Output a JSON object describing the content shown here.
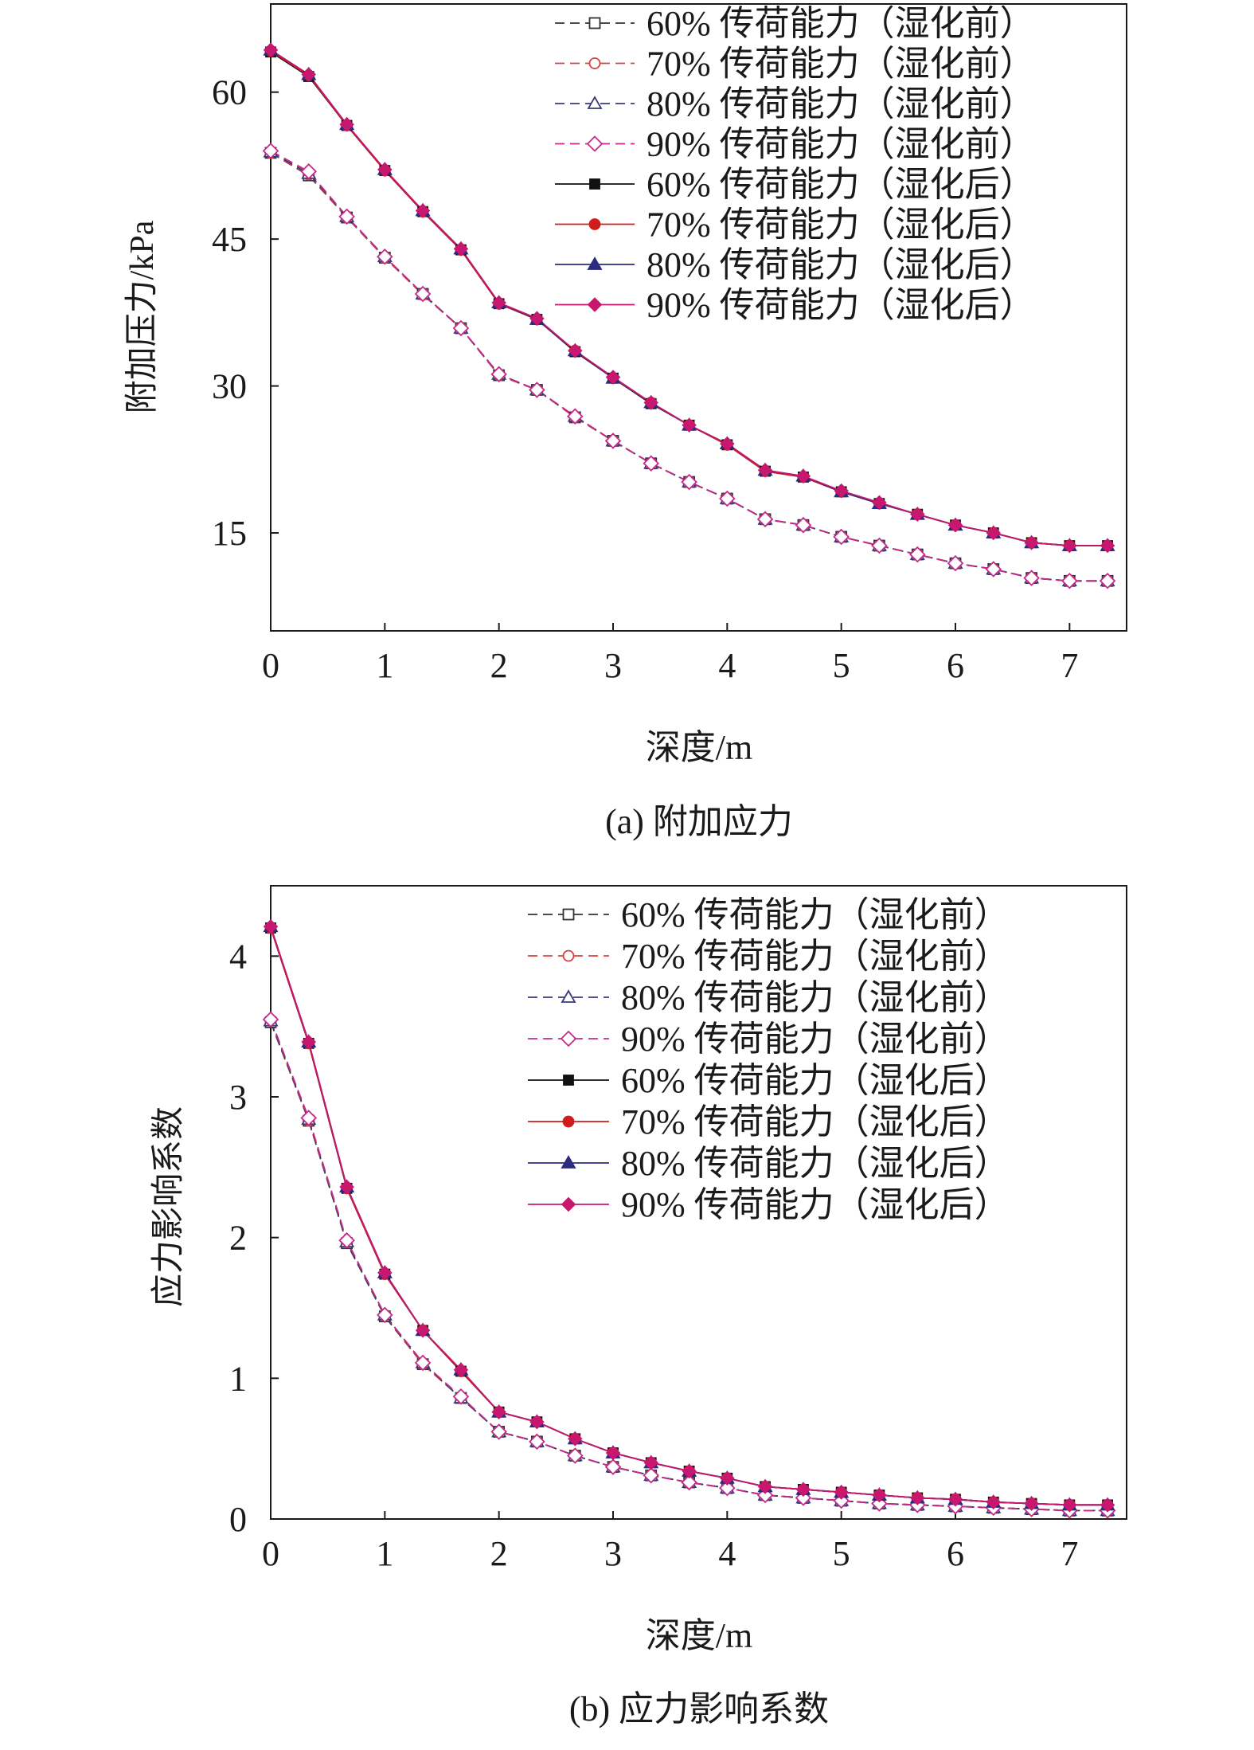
{
  "chart_data": [
    {
      "type": "line",
      "caption": "(a) 附加应力",
      "xlabel": "深度/m",
      "ylabel": "附加压力/kPa",
      "xlim": [
        0,
        7.5
      ],
      "ylim": [
        5,
        69
      ],
      "xticks": [
        0,
        1,
        2,
        3,
        4,
        5,
        6,
        7
      ],
      "yticks": [
        15,
        30,
        45,
        60
      ],
      "grid": false,
      "legend_position": "top-right",
      "x": [
        0,
        0.333,
        0.667,
        1.0,
        1.333,
        1.667,
        2.0,
        2.333,
        2.667,
        3.0,
        3.333,
        3.667,
        4.0,
        4.333,
        4.667,
        5.0,
        5.333,
        5.667,
        6.0,
        6.333,
        6.667,
        7.0,
        7.333
      ],
      "series": [
        {
          "name": "60% 传荷能力（湿化前）",
          "color": "#333333",
          "dashed": true,
          "marker": "square-open",
          "values": [
            53.8,
            51.5,
            47.2,
            43.1,
            39.4,
            35.9,
            31.1,
            29.6,
            26.8,
            24.4,
            22.1,
            20.2,
            18.5,
            16.4,
            15.8,
            14.6,
            13.7,
            12.8,
            11.9,
            11.3,
            10.4,
            10.1,
            10.1
          ]
        },
        {
          "name": "70% 传荷能力（湿化前）",
          "color": "#d94040",
          "dashed": true,
          "marker": "circle-open",
          "values": [
            53.8,
            51.6,
            47.2,
            43.1,
            39.3,
            35.9,
            31.1,
            29.6,
            26.8,
            24.4,
            22.1,
            20.2,
            18.5,
            16.4,
            15.8,
            14.6,
            13.7,
            12.8,
            11.9,
            11.3,
            10.4,
            10.1,
            10.1
          ]
        },
        {
          "name": "80% 传荷能力（湿化前）",
          "color": "#3a3a7a",
          "dashed": true,
          "marker": "triangle-open",
          "values": [
            53.9,
            51.7,
            47.3,
            43.2,
            39.4,
            35.9,
            31.2,
            29.6,
            26.9,
            24.4,
            22.1,
            20.2,
            18.5,
            16.4,
            15.8,
            14.6,
            13.7,
            12.8,
            11.9,
            11.3,
            10.4,
            10.1,
            10.1
          ]
        },
        {
          "name": "90% 传荷能力（湿化前）",
          "color": "#c72a8a",
          "dashed": true,
          "marker": "diamond-open",
          "values": [
            54.0,
            51.9,
            47.3,
            43.2,
            39.4,
            35.9,
            31.2,
            29.6,
            26.9,
            24.4,
            22.1,
            20.2,
            18.5,
            16.4,
            15.8,
            14.6,
            13.7,
            12.8,
            11.9,
            11.3,
            10.4,
            10.1,
            10.1
          ]
        },
        {
          "name": "60% 传荷能力（湿化后）",
          "color": "#111111",
          "dashed": false,
          "marker": "square",
          "values": [
            64.1,
            61.6,
            56.6,
            52.0,
            47.8,
            43.9,
            38.4,
            36.8,
            33.5,
            30.8,
            28.2,
            26.0,
            24.0,
            21.3,
            20.7,
            19.2,
            18.0,
            16.9,
            15.8,
            15.0,
            14.0,
            13.7,
            13.7
          ]
        },
        {
          "name": "70% 传荷能力（湿化后）",
          "color": "#d01c1c",
          "dashed": false,
          "marker": "circle",
          "values": [
            64.2,
            61.7,
            56.6,
            52.0,
            47.8,
            43.9,
            38.4,
            36.8,
            33.6,
            30.8,
            28.3,
            26.0,
            24.0,
            21.3,
            20.7,
            19.2,
            18.0,
            16.9,
            15.8,
            15.0,
            14.0,
            13.7,
            13.7
          ]
        },
        {
          "name": "80% 传荷能力（湿化后）",
          "color": "#2b2b80",
          "dashed": false,
          "marker": "triangle",
          "values": [
            64.3,
            61.8,
            56.7,
            52.1,
            47.9,
            44.0,
            38.5,
            36.8,
            33.6,
            30.8,
            28.3,
            26.0,
            24.1,
            21.4,
            20.8,
            19.2,
            18.0,
            16.9,
            15.8,
            15.0,
            14.0,
            13.7,
            13.7
          ]
        },
        {
          "name": "90% 传荷能力（湿化后）",
          "color": "#c8176e",
          "dashed": false,
          "marker": "diamond",
          "values": [
            64.3,
            61.8,
            56.7,
            52.1,
            47.9,
            44.0,
            38.5,
            36.9,
            33.6,
            30.9,
            28.3,
            26.0,
            24.1,
            21.4,
            20.8,
            19.3,
            18.1,
            16.9,
            15.8,
            15.0,
            14.0,
            13.7,
            13.7
          ]
        }
      ]
    },
    {
      "type": "line",
      "caption": "(b) 应力影响系数",
      "xlabel": "深度/m",
      "ylabel": "应力影响系数",
      "xlim": [
        0,
        7.5
      ],
      "ylim": [
        0,
        4.5
      ],
      "xticks": [
        0,
        1,
        2,
        3,
        4,
        5,
        6,
        7
      ],
      "yticks": [
        0,
        1,
        2,
        3,
        4
      ],
      "grid": false,
      "legend_position": "top-right",
      "x": [
        0,
        0.333,
        0.667,
        1.0,
        1.333,
        1.667,
        2.0,
        2.333,
        2.667,
        3.0,
        3.333,
        3.667,
        4.0,
        4.333,
        4.667,
        5.0,
        5.333,
        5.667,
        6.0,
        6.333,
        6.667,
        7.0,
        7.333
      ],
      "series": [
        {
          "name": "60% 传荷能力（湿化前）",
          "color": "#333333",
          "dashed": true,
          "marker": "square-open",
          "values": [
            3.53,
            2.83,
            1.96,
            1.44,
            1.1,
            0.86,
            0.62,
            0.55,
            0.45,
            0.37,
            0.31,
            0.26,
            0.22,
            0.17,
            0.15,
            0.13,
            0.11,
            0.1,
            0.09,
            0.08,
            0.07,
            0.06,
            0.06
          ]
        },
        {
          "name": "70% 传荷能力（湿化前）",
          "color": "#d94040",
          "dashed": true,
          "marker": "circle-open",
          "values": [
            3.54,
            2.83,
            1.97,
            1.45,
            1.1,
            0.86,
            0.62,
            0.55,
            0.45,
            0.37,
            0.31,
            0.26,
            0.22,
            0.17,
            0.15,
            0.13,
            0.11,
            0.1,
            0.09,
            0.08,
            0.07,
            0.06,
            0.06
          ]
        },
        {
          "name": "80% 传荷能力（湿化前）",
          "color": "#3a3a7a",
          "dashed": true,
          "marker": "triangle-open",
          "values": [
            3.54,
            2.84,
            1.97,
            1.45,
            1.11,
            0.86,
            0.62,
            0.55,
            0.45,
            0.37,
            0.31,
            0.26,
            0.22,
            0.17,
            0.15,
            0.13,
            0.11,
            0.1,
            0.09,
            0.08,
            0.07,
            0.06,
            0.06
          ]
        },
        {
          "name": "90% 传荷能力（湿化前）",
          "color": "#c72a8a",
          "dashed": true,
          "marker": "diamond-open",
          "values": [
            3.55,
            2.85,
            1.98,
            1.45,
            1.11,
            0.87,
            0.62,
            0.55,
            0.45,
            0.37,
            0.31,
            0.26,
            0.22,
            0.17,
            0.15,
            0.13,
            0.11,
            0.1,
            0.09,
            0.08,
            0.07,
            0.06,
            0.06
          ]
        },
        {
          "name": "60% 传荷能力（湿化后）",
          "color": "#111111",
          "dashed": false,
          "marker": "square",
          "values": [
            4.2,
            3.38,
            2.35,
            1.74,
            1.34,
            1.05,
            0.76,
            0.69,
            0.57,
            0.47,
            0.4,
            0.34,
            0.29,
            0.23,
            0.21,
            0.19,
            0.17,
            0.15,
            0.14,
            0.12,
            0.11,
            0.1,
            0.1
          ]
        },
        {
          "name": "70% 传荷能力（湿化后）",
          "color": "#d01c1c",
          "dashed": false,
          "marker": "circle",
          "values": [
            4.2,
            3.38,
            2.35,
            1.74,
            1.34,
            1.05,
            0.76,
            0.69,
            0.57,
            0.47,
            0.4,
            0.34,
            0.29,
            0.23,
            0.21,
            0.19,
            0.17,
            0.15,
            0.14,
            0.12,
            0.11,
            0.1,
            0.1
          ]
        },
        {
          "name": "80% 传荷能力（湿化后）",
          "color": "#2b2b80",
          "dashed": false,
          "marker": "triangle",
          "values": [
            4.21,
            3.39,
            2.36,
            1.75,
            1.34,
            1.06,
            0.76,
            0.69,
            0.57,
            0.47,
            0.4,
            0.34,
            0.29,
            0.23,
            0.21,
            0.19,
            0.17,
            0.15,
            0.14,
            0.12,
            0.11,
            0.1,
            0.1
          ]
        },
        {
          "name": "90% 传荷能力（湿化后）",
          "color": "#c8176e",
          "dashed": false,
          "marker": "diamond",
          "values": [
            4.21,
            3.39,
            2.36,
            1.75,
            1.34,
            1.06,
            0.76,
            0.69,
            0.57,
            0.47,
            0.4,
            0.34,
            0.29,
            0.23,
            0.21,
            0.19,
            0.17,
            0.15,
            0.14,
            0.12,
            0.11,
            0.1,
            0.1
          ]
        }
      ]
    }
  ]
}
